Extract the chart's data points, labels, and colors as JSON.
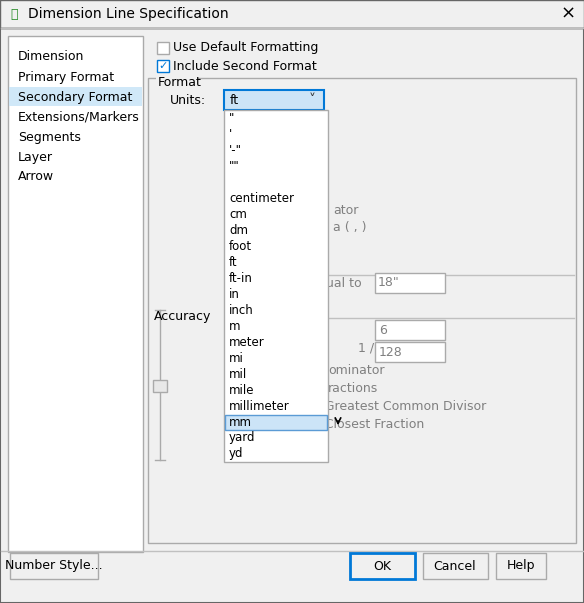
{
  "title": "Dimension Line Specification",
  "dialog_bg": "#f0f0f0",
  "left_panel_bg": "#ffffff",
  "left_panel_items": [
    "Dimension",
    "Primary Format",
    "Secondary Format",
    "Extensions/Markers",
    "Segments",
    "Layer",
    "Arrow"
  ],
  "selected_item": "Secondary Format",
  "selected_item_bg": "#d0e8f8",
  "checkbox1_label": "Use Default Formatting",
  "checkbox1_checked": false,
  "checkbox2_label": "Include Second Format",
  "checkbox2_checked": true,
  "format_group_label": "Format",
  "units_label": "Units:",
  "units_value": "ft",
  "dropdown_items": [
    "\"",
    "'",
    "'-\"",
    "\"\"",
    "",
    "centimeter",
    "cm",
    "dm",
    "foot",
    "ft",
    "ft-in",
    "in",
    "inch",
    "m",
    "meter",
    "mi",
    "mil",
    "mile",
    "millimeter",
    "mm",
    "yard",
    "yd"
  ],
  "dropdown_highlighted": "mm",
  "dropdown_bg": "#ffffff",
  "dropdown_highlight_bg": "#cce4f7",
  "accuracy_label": "Accuracy",
  "right_text_ator": "ator",
  "right_text_sep": "a ( , )",
  "right_text_equal": "qual to",
  "right_text_equal_val": "18\"",
  "right_val1": "6",
  "right_fraction": "1 /",
  "right_val2": "128",
  "right_text_ominator": "ominator",
  "right_text_ractions": "ractions",
  "right_text_gcd": "e Greatest Common Divisor",
  "right_text_cf": "e Closest Fraction",
  "btn_number_style": "Number Style...",
  "btn_ok": "OK",
  "btn_cancel": "Cancel",
  "btn_help": "Help",
  "combobox_bg": "#cce4f7",
  "titlebar_bg": "#f0f0f0",
  "border_color": "#aaaaaa",
  "dark_border": "#666666",
  "button_bg": "#f0f0f0",
  "ok_border_color": "#0078d7",
  "check_color": "#0078d7",
  "separator_color": "#c0c0c0",
  "dim_text_color": "#808080",
  "cursor_color": "#333333"
}
